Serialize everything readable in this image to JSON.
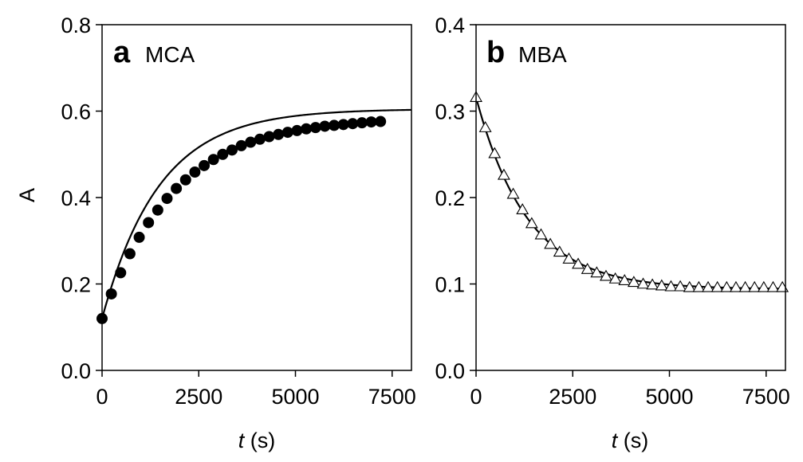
{
  "chart_data": [
    {
      "type": "scatter",
      "panel_letter": "a",
      "panel_name": "MCA",
      "ylabel": "A",
      "xlabel": {
        "var": "t",
        "unit": " (s)"
      },
      "xlim": [
        0,
        8000
      ],
      "ylim": [
        0,
        0.8
      ],
      "xticks": [
        "0",
        "2500",
        "5000",
        "7500"
      ],
      "xtick_values": [
        0,
        2500,
        5000,
        7500
      ],
      "yticks": [
        "0.0",
        "0.2",
        "0.4",
        "0.6",
        "0.8"
      ],
      "ytick_values": [
        0,
        0.2,
        0.4,
        0.6,
        0.8
      ],
      "marker": "filled-circle",
      "fit_curve": {
        "model": "A_inf - (A_inf - A0) * exp(-k t)",
        "A0": 0.12,
        "A_inf": 0.605,
        "k": 0.00068,
        "x_range": [
          0,
          8000
        ]
      },
      "points": {
        "x": [
          0,
          240,
          480,
          720,
          960,
          1200,
          1440,
          1680,
          1920,
          2160,
          2400,
          2640,
          2880,
          3120,
          3360,
          3600,
          3840,
          4080,
          4320,
          4560,
          4800,
          5040,
          5280,
          5520,
          5760,
          6000,
          6240,
          6480,
          6720,
          6960,
          7200
        ],
        "y": [
          0.12,
          0.177,
          0.226,
          0.27,
          0.308,
          0.342,
          0.371,
          0.398,
          0.421,
          0.441,
          0.459,
          0.474,
          0.488,
          0.5,
          0.51,
          0.52,
          0.528,
          0.535,
          0.541,
          0.546,
          0.551,
          0.555,
          0.559,
          0.562,
          0.565,
          0.567,
          0.569,
          0.571,
          0.573,
          0.575,
          0.576
        ]
      }
    },
    {
      "type": "scatter",
      "panel_letter": "b",
      "panel_name": "MBA",
      "ylabel": "",
      "xlabel": {
        "var": "t",
        "unit": " (s)"
      },
      "xlim": [
        0,
        8000
      ],
      "ylim": [
        0,
        0.4
      ],
      "xticks": [
        "0",
        "2500",
        "5000",
        "7500"
      ],
      "xtick_values": [
        0,
        2500,
        5000,
        7500
      ],
      "yticks": [
        "0.0",
        "0.1",
        "0.2",
        "0.3",
        "0.4"
      ],
      "ytick_values": [
        0,
        0.1,
        0.2,
        0.3,
        0.4
      ],
      "marker": "open-triangle",
      "fit_curve": {
        "model": "A_inf + (A0 - A_inf) * exp(-k t)",
        "A0": 0.316,
        "A_inf": 0.094,
        "k": 0.00075,
        "x_range": [
          0,
          8000
        ]
      },
      "points": {
        "x": [
          0,
          240,
          480,
          720,
          960,
          1200,
          1440,
          1680,
          1920,
          2160,
          2400,
          2640,
          2880,
          3120,
          3360,
          3600,
          3840,
          4080,
          4320,
          4560,
          4800,
          5040,
          5280,
          5520,
          5760,
          6000,
          6240,
          6480,
          6720,
          6960,
          7200,
          7440,
          7680,
          7920
        ],
        "y": [
          0.316,
          0.281,
          0.251,
          0.226,
          0.204,
          0.186,
          0.17,
          0.157,
          0.146,
          0.137,
          0.129,
          0.123,
          0.117,
          0.113,
          0.109,
          0.106,
          0.104,
          0.102,
          0.1,
          0.099,
          0.098,
          0.097,
          0.097,
          0.096,
          0.096,
          0.096,
          0.096,
          0.096,
          0.096,
          0.096,
          0.096,
          0.096,
          0.096,
          0.096
        ]
      }
    }
  ]
}
